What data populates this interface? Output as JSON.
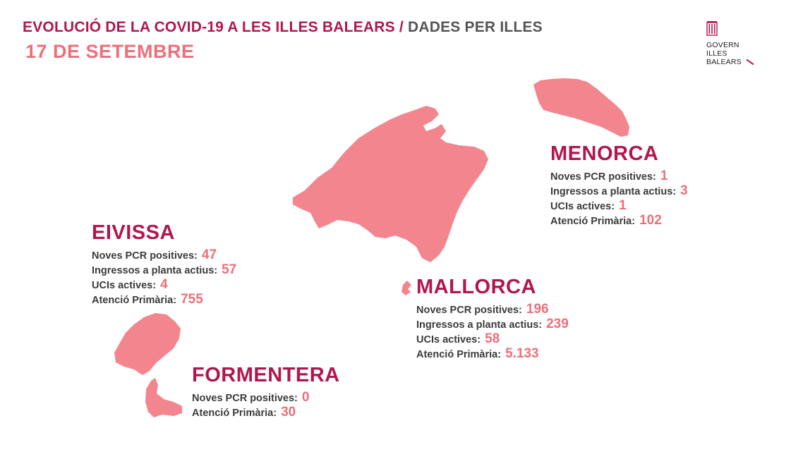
{
  "header": {
    "title_main": "EVOLUCIÓ DE LA COVID-19 A LES ILLES BALEARS",
    "title_sep": "/",
    "title_sub": "DADES PER ILLES",
    "date": "17 DE SETEMBRE"
  },
  "logo": {
    "line1": "GOVERN",
    "line2": "ILLES",
    "line3": "BALEARS"
  },
  "colors": {
    "brand": "#b1164f",
    "accent": "#ec6f7a",
    "map_fill": "#f2858e"
  },
  "islands": {
    "menorca": {
      "name": "MENORCA",
      "stats": [
        {
          "label": "Noves PCR positives:",
          "value": "1"
        },
        {
          "label": "Ingressos a planta actius:",
          "value": "3"
        },
        {
          "label": "UCIs actives:",
          "value": "1"
        },
        {
          "label": "Atenció Primària:",
          "value": "102"
        }
      ]
    },
    "eivissa": {
      "name": "EIVISSA",
      "stats": [
        {
          "label": "Noves PCR positives:",
          "value": "47"
        },
        {
          "label": "Ingressos a planta actius:",
          "value": "57"
        },
        {
          "label": "UCIs actives:",
          "value": "4"
        },
        {
          "label": "Atenció Primària:",
          "value": "755"
        }
      ]
    },
    "mallorca": {
      "name": "MALLORCA",
      "stats": [
        {
          "label": "Noves PCR positives:",
          "value": "196"
        },
        {
          "label": "Ingressos a planta actius:",
          "value": "239"
        },
        {
          "label": "UCIs actives:",
          "value": "58"
        },
        {
          "label": "Atenció Primària:",
          "value": "5.133"
        }
      ]
    },
    "formentera": {
      "name": "FORMENTERA",
      "stats": [
        {
          "label": "Noves PCR positives:",
          "value": "0"
        },
        {
          "label": "Atenció Primària:",
          "value": "30"
        }
      ]
    }
  }
}
